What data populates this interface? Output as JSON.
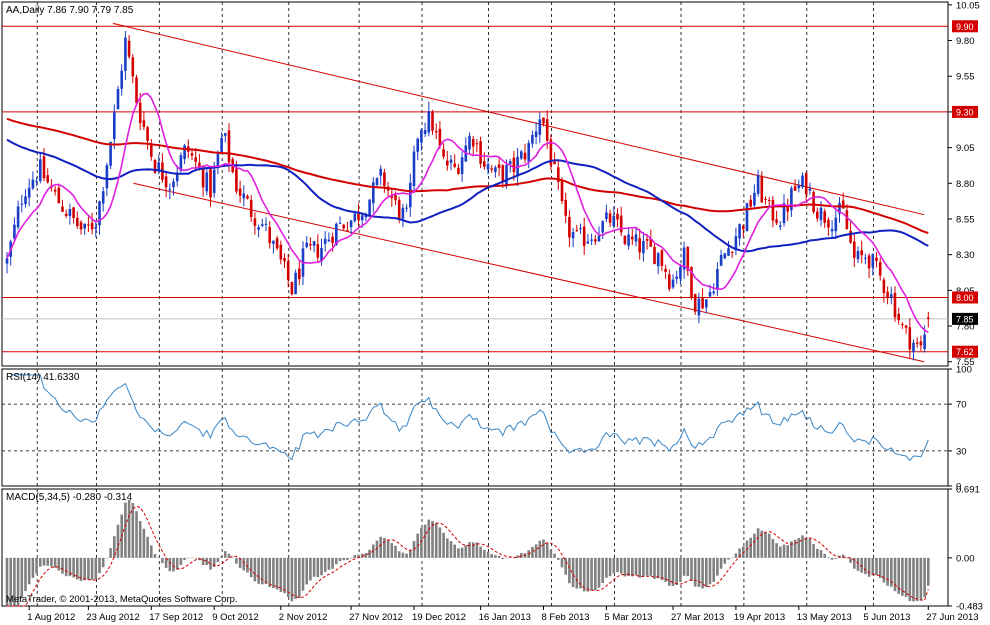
{
  "chart_data": {
    "type": "candlestick",
    "platform": "MetaTrader",
    "copyright": "MetaTrader, © 2001-2013, MetaQuotes Software Corp.",
    "main": {
      "header": "AA,Daily  7.86 7.90 7.79 7.85",
      "symbol": "AA",
      "timeframe": "Daily",
      "ohlc_last": {
        "open": 7.86,
        "high": 7.9,
        "low": 7.79,
        "close": 7.85
      },
      "y_ticks": [
        "10.05",
        "9.80",
        "9.55",
        "9.30",
        "9.05",
        "8.80",
        "8.55",
        "8.30",
        "8.05",
        "7.80",
        "7.55"
      ],
      "ylim": [
        7.52,
        10.07
      ],
      "current_price": "7.85",
      "horizontal_levels": [
        {
          "value": 9.9,
          "label": "9.90",
          "color": "#d40000"
        },
        {
          "value": 9.3,
          "label": "9.30",
          "color": "#d40000"
        },
        {
          "value": 8.0,
          "label": "8.00",
          "color": "#d40000"
        },
        {
          "value": 7.62,
          "label": "7.62",
          "color": "#d40000"
        }
      ],
      "channel": {
        "upper": [
          {
            "i": 26,
            "v": 9.92
          },
          {
            "i": 225,
            "v": 8.58
          }
        ],
        "lower": [
          {
            "i": 31,
            "v": 8.8
          },
          {
            "i": 225,
            "v": 7.55
          }
        ]
      },
      "sma_short_color": "#e020e0",
      "sma_mid_color": "#1020c0",
      "sma_long_color": "#d40000",
      "up_color": "#1a3ec8",
      "down_color": "#d40000",
      "anchors": [
        {
          "i": 0,
          "v": 8.25
        },
        {
          "i": 4,
          "v": 8.75
        },
        {
          "i": 8,
          "v": 8.9
        },
        {
          "i": 12,
          "v": 8.7
        },
        {
          "i": 16,
          "v": 8.55
        },
        {
          "i": 19,
          "v": 8.45
        },
        {
          "i": 22,
          "v": 8.55
        },
        {
          "i": 26,
          "v": 9.2
        },
        {
          "i": 29,
          "v": 9.8
        },
        {
          "i": 32,
          "v": 9.35
        },
        {
          "i": 36,
          "v": 8.95
        },
        {
          "i": 40,
          "v": 8.8
        },
        {
          "i": 44,
          "v": 9.05
        },
        {
          "i": 47,
          "v": 8.9
        },
        {
          "i": 50,
          "v": 8.75
        },
        {
          "i": 53,
          "v": 9.15
        },
        {
          "i": 56,
          "v": 8.8
        },
        {
          "i": 60,
          "v": 8.6
        },
        {
          "i": 63,
          "v": 8.5
        },
        {
          "i": 67,
          "v": 8.25
        },
        {
          "i": 70,
          "v": 8.05
        },
        {
          "i": 73,
          "v": 8.3
        },
        {
          "i": 77,
          "v": 8.35
        },
        {
          "i": 81,
          "v": 8.5
        },
        {
          "i": 85,
          "v": 8.55
        },
        {
          "i": 88,
          "v": 8.65
        },
        {
          "i": 92,
          "v": 8.85
        },
        {
          "i": 95,
          "v": 8.65
        },
        {
          "i": 98,
          "v": 8.55
        },
        {
          "i": 101,
          "v": 9.2
        },
        {
          "i": 104,
          "v": 9.25
        },
        {
          "i": 107,
          "v": 8.95
        },
        {
          "i": 110,
          "v": 8.9
        },
        {
          "i": 114,
          "v": 9.15
        },
        {
          "i": 117,
          "v": 8.95
        },
        {
          "i": 120,
          "v": 8.85
        },
        {
          "i": 124,
          "v": 8.9
        },
        {
          "i": 128,
          "v": 9.05
        },
        {
          "i": 131,
          "v": 9.3
        },
        {
          "i": 134,
          "v": 8.9
        },
        {
          "i": 137,
          "v": 8.5
        },
        {
          "i": 140,
          "v": 8.4
        },
        {
          "i": 144,
          "v": 8.45
        },
        {
          "i": 148,
          "v": 8.55
        },
        {
          "i": 152,
          "v": 8.4
        },
        {
          "i": 156,
          "v": 8.35
        },
        {
          "i": 160,
          "v": 8.3
        },
        {
          "i": 163,
          "v": 8.1
        },
        {
          "i": 166,
          "v": 8.3
        },
        {
          "i": 169,
          "v": 7.95
        },
        {
          "i": 172,
          "v": 8.0
        },
        {
          "i": 175,
          "v": 8.25
        },
        {
          "i": 178,
          "v": 8.4
        },
        {
          "i": 181,
          "v": 8.55
        },
        {
          "i": 184,
          "v": 8.8
        },
        {
          "i": 187,
          "v": 8.6
        },
        {
          "i": 190,
          "v": 8.55
        },
        {
          "i": 193,
          "v": 8.75
        },
        {
          "i": 196,
          "v": 8.8
        },
        {
          "i": 199,
          "v": 8.6
        },
        {
          "i": 202,
          "v": 8.55
        },
        {
          "i": 205,
          "v": 8.6
        },
        {
          "i": 208,
          "v": 8.25
        },
        {
          "i": 211,
          "v": 8.3
        },
        {
          "i": 214,
          "v": 8.15
        },
        {
          "i": 217,
          "v": 8.0
        },
        {
          "i": 220,
          "v": 7.75
        },
        {
          "i": 222,
          "v": 7.7
        },
        {
          "i": 224,
          "v": 7.62
        },
        {
          "i": 226,
          "v": 7.85
        }
      ]
    },
    "rsi": {
      "header": "RSI(14) 41.6330",
      "y_ticks": [
        "100",
        "70",
        "30",
        "0"
      ],
      "levels": [
        70,
        30
      ],
      "color": "#3a87c8"
    },
    "macd": {
      "header": "MACD(5,34,5) -0.280 -0.314",
      "y_ticks": [
        "0.691",
        "0.00",
        "-0.483"
      ],
      "ylim": [
        -0.483,
        0.691
      ],
      "hist_color": "#808080",
      "signal_color": "#d40000"
    },
    "x_labels": [
      {
        "i": 6,
        "label": "1 Aug 2012"
      },
      {
        "i": 22,
        "label": "23 Aug 2012"
      },
      {
        "i": 38,
        "label": "17 Sep 2012"
      },
      {
        "i": 55,
        "label": "9 Oct 2012"
      },
      {
        "i": 73,
        "label": "2 Nov 2012"
      },
      {
        "i": 91,
        "label": "27 Nov 2012"
      },
      {
        "i": 108,
        "label": "19 Dec 2012"
      },
      {
        "i": 125,
        "label": "16 Jan 2013"
      },
      {
        "i": 142,
        "label": "8 Feb 2013"
      },
      {
        "i": 159,
        "label": "5 Mar 2013"
      },
      {
        "i": 176,
        "label": "27 Mar 2013"
      },
      {
        "i": 193,
        "label": "19 Apr 2013"
      },
      {
        "i": 210,
        "label": "13 May 2013"
      },
      {
        "i": 227,
        "label": "5 Jun 2013"
      },
      {
        "i": 244,
        "label": "27 Jun 2013"
      }
    ]
  }
}
